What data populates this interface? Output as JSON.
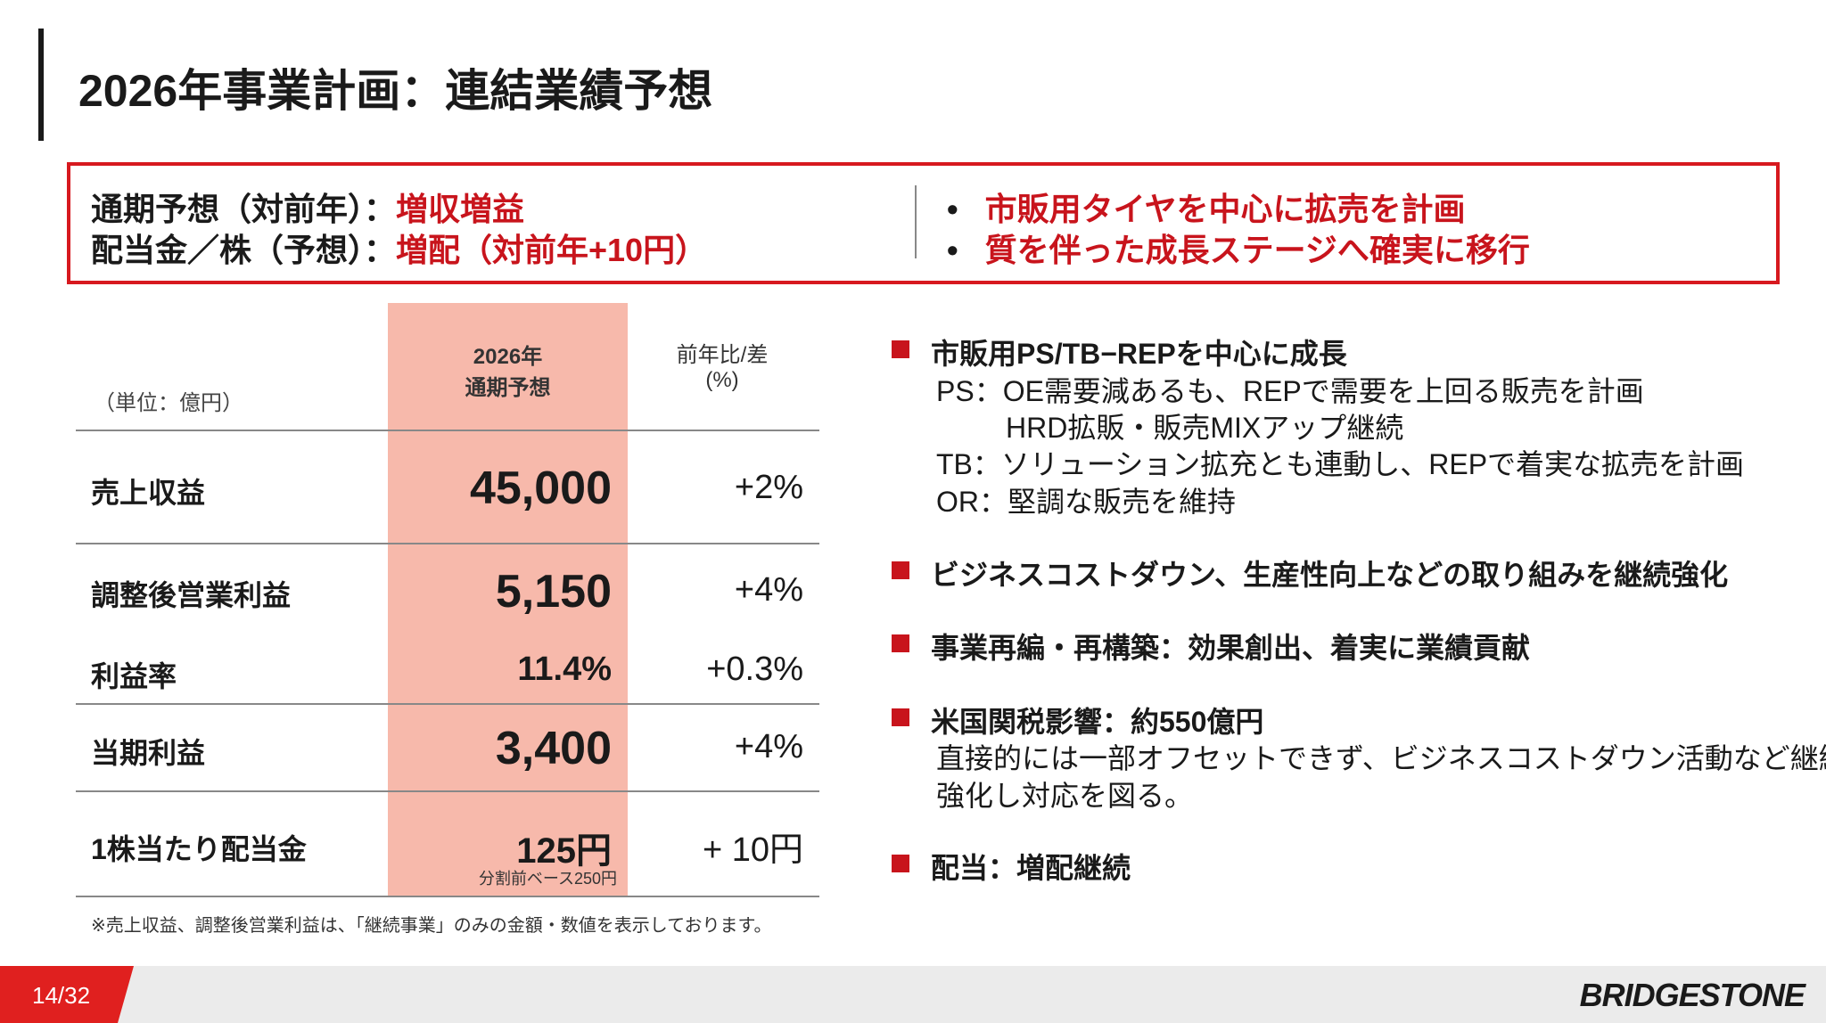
{
  "title": "2026年事業計画：連結業績予想",
  "summary": {
    "line1_label": "通期予想（対前年）：",
    "line1_value": "増収増益",
    "line2_label": "配当金／株（予想）：",
    "line2_value": "増配（対前年+10円）",
    "bullets": [
      "市販用タイヤを中心に拡売を計画",
      "質を伴った成長ステージへ確実に移行"
    ]
  },
  "table": {
    "unit": "（単位：億円）",
    "col1_header": [
      "2026年",
      "通期予想"
    ],
    "col2_header": [
      "前年比/差",
      "(%)"
    ],
    "rows": [
      {
        "label": "売上収益",
        "value": "45,000",
        "change": "+2%"
      },
      {
        "label": "調整後営業利益",
        "value": "5,150",
        "change": "+4%"
      },
      {
        "label": "利益率",
        "value": "11.4%",
        "change": "+0.3%"
      },
      {
        "label": "当期利益",
        "value": "3,400",
        "change": "+4%"
      },
      {
        "label": "1株当たり配当金",
        "value": "125円",
        "note": "分割前ベース250円",
        "change": "+ 10円"
      }
    ],
    "footnote": "※売上収益、調整後営業利益は、「継続事業」のみの金額・数値を表示しております。"
  },
  "points": [
    {
      "head": "市販用PS/TB−REPを中心に成長",
      "lines": [
        "PS：OE需要減あるも、REPで需要を上回る販売を計画",
        "HRD拡販・販売MIXアップ継続",
        "TB：ソリューション拡充とも連動し、REPで着実な拡売を計画",
        "OR：堅調な販売を維持"
      ]
    },
    {
      "head": "ビジネスコストダウン、生産性向上などの取り組みを継続強化"
    },
    {
      "head": "事業再編・再構築：効果創出、着実に業績貢献"
    },
    {
      "head": "米国関税影響：約550億円",
      "lines": [
        "直接的には一部オフセットできず、ビジネスコストダウン活動など継続",
        "強化し対応を図る。"
      ]
    },
    {
      "head": "配当：増配継続"
    }
  ],
  "footer": {
    "page": "14/32",
    "logo": "BRIDGESTONE"
  },
  "colors": {
    "accent": "#c8141c",
    "highlight": "#f7b9ab"
  }
}
